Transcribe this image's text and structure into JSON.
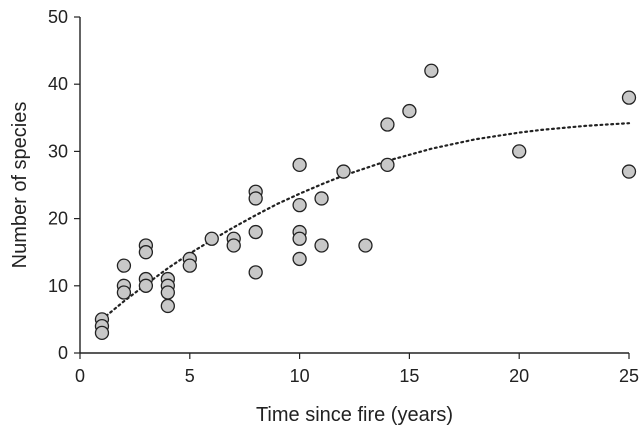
{
  "chart_data": {
    "type": "scatter",
    "xlabel": "Time since fire (years)",
    "ylabel": "Number of species",
    "xlim": [
      0,
      25
    ],
    "ylim": [
      0,
      50
    ],
    "xticks": [
      0,
      5,
      10,
      15,
      20,
      25
    ],
    "yticks": [
      0,
      10,
      20,
      30,
      40,
      50
    ],
    "grid": false,
    "points": [
      {
        "x": 1,
        "y": 5
      },
      {
        "x": 1,
        "y": 4
      },
      {
        "x": 1,
        "y": 3
      },
      {
        "x": 2,
        "y": 13
      },
      {
        "x": 2,
        "y": 10
      },
      {
        "x": 2,
        "y": 9
      },
      {
        "x": 3,
        "y": 16
      },
      {
        "x": 3,
        "y": 15
      },
      {
        "x": 3,
        "y": 11
      },
      {
        "x": 3,
        "y": 10
      },
      {
        "x": 4,
        "y": 11
      },
      {
        "x": 4,
        "y": 10
      },
      {
        "x": 4,
        "y": 9
      },
      {
        "x": 4,
        "y": 7
      },
      {
        "x": 5,
        "y": 14
      },
      {
        "x": 5,
        "y": 13
      },
      {
        "x": 6,
        "y": 17
      },
      {
        "x": 7,
        "y": 17
      },
      {
        "x": 7,
        "y": 16
      },
      {
        "x": 8,
        "y": 24
      },
      {
        "x": 8,
        "y": 23
      },
      {
        "x": 8,
        "y": 18
      },
      {
        "x": 8,
        "y": 12
      },
      {
        "x": 10,
        "y": 28
      },
      {
        "x": 10,
        "y": 22
      },
      {
        "x": 10,
        "y": 18
      },
      {
        "x": 10,
        "y": 17
      },
      {
        "x": 10,
        "y": 14
      },
      {
        "x": 11,
        "y": 23
      },
      {
        "x": 11,
        "y": 16
      },
      {
        "x": 12,
        "y": 27
      },
      {
        "x": 13,
        "y": 16
      },
      {
        "x": 14,
        "y": 34
      },
      {
        "x": 14,
        "y": 28
      },
      {
        "x": 15,
        "y": 36
      },
      {
        "x": 16,
        "y": 42
      },
      {
        "x": 20,
        "y": 30
      },
      {
        "x": 25,
        "y": 38
      },
      {
        "x": 25,
        "y": 27
      }
    ],
    "trendline": {
      "style": "dotted",
      "type": "polynomial",
      "x": [
        1,
        2,
        3,
        4,
        5,
        6,
        7,
        8,
        9,
        10,
        11,
        12,
        13,
        14,
        15,
        16,
        17,
        18,
        19,
        20,
        21,
        22,
        23,
        24,
        25
      ],
      "y": [
        5.0,
        7.7,
        10.2,
        12.6,
        14.8,
        16.8,
        18.7,
        20.5,
        22.2,
        23.7,
        25.1,
        26.4,
        27.5,
        28.6,
        29.5,
        30.4,
        31.1,
        31.8,
        32.3,
        32.8,
        33.2,
        33.5,
        33.8,
        34.0,
        34.2
      ]
    }
  }
}
